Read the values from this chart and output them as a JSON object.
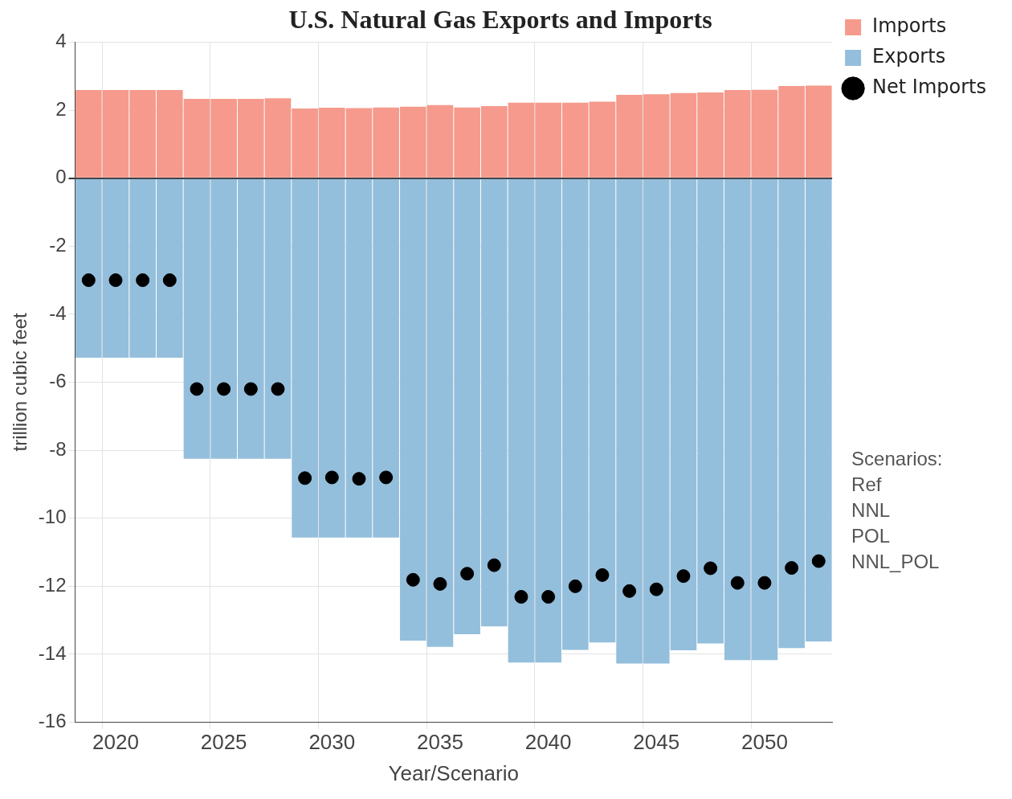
{
  "chart_data": {
    "type": "bar",
    "title": "U.S. Natural Gas Exports and Imports",
    "xlabel": "Year/Scenario",
    "ylabel": "trillion cubic feet",
    "categories": [
      null,
      "2020",
      null,
      null,
      null,
      "2025",
      null,
      null,
      null,
      "2030",
      null,
      null,
      null,
      "2035",
      null,
      null,
      null,
      "2040",
      null,
      null,
      null,
      "2045",
      null,
      null,
      null,
      "2050",
      null,
      null
    ],
    "stacked": true,
    "series": [
      {
        "name": "Imports",
        "color": "#f59a8c",
        "values": [
          2.59,
          2.59,
          2.59,
          2.59,
          2.33,
          2.33,
          2.33,
          2.35,
          2.05,
          2.07,
          2.06,
          2.08,
          2.1,
          2.15,
          2.08,
          2.12,
          2.22,
          2.22,
          2.22,
          2.25,
          2.45,
          2.47,
          2.5,
          2.52,
          2.59,
          2.6,
          2.71,
          2.72
        ]
      },
      {
        "name": "Exports",
        "color": "#94bfdc",
        "values": [
          -5.28,
          -5.28,
          -5.28,
          -5.28,
          -8.25,
          -8.25,
          -8.25,
          -8.25,
          -10.57,
          -10.57,
          -10.57,
          -10.57,
          -13.6,
          -13.78,
          -13.41,
          -13.18,
          -14.24,
          -14.24,
          -13.87,
          -13.65,
          -14.27,
          -14.27,
          -13.88,
          -13.68,
          -14.17,
          -14.17,
          -13.82,
          -13.62
        ]
      },
      {
        "name": "Net Imports",
        "type": "scatter",
        "color": "#000000",
        "values": [
          -3.0,
          -3.0,
          -3.0,
          -3.0,
          -6.2,
          -6.2,
          -6.2,
          -6.2,
          -8.82,
          -8.8,
          -8.84,
          -8.8,
          -11.81,
          -11.93,
          -11.63,
          -11.38,
          -12.31,
          -12.31,
          -12.0,
          -11.67,
          -12.14,
          -12.09,
          -11.7,
          -11.47,
          -11.9,
          -11.9,
          -11.46,
          -11.26
        ]
      }
    ],
    "ylim": [
      -16,
      4
    ],
    "yticks": [
      -16,
      -14,
      -12,
      -10,
      -8,
      -6,
      -4,
      -2,
      0,
      2,
      4
    ],
    "grid": true,
    "legend": "top right",
    "marker": "circle",
    "annotations": [
      "Scenarios:",
      "Ref",
      "NNL",
      "POL",
      "NNL_POL"
    ]
  }
}
